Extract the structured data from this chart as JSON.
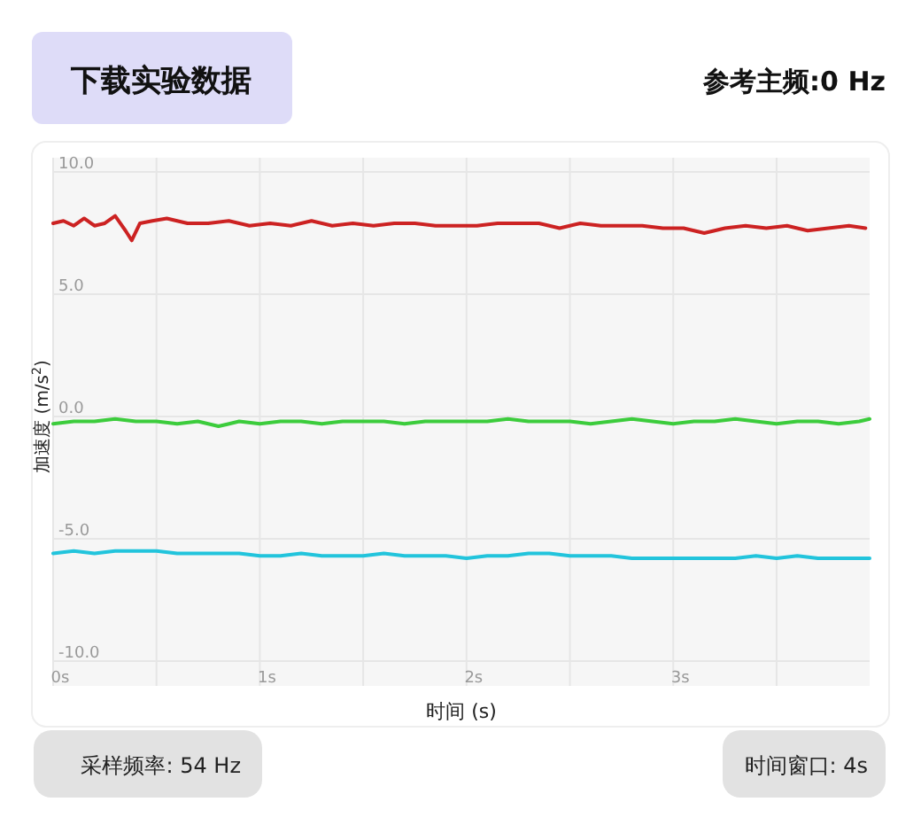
{
  "chart_data": {
    "type": "line",
    "xlabel": "时间 (s)",
    "ylabel": "加速度 (m/s$^{2}$)",
    "annotations": [
      "下载实验数据",
      "参考主频:0 Hz",
      "采样频率: 54 Hz",
      "时间窗口: 4s"
    ],
    "xlim": [
      0,
      3.95
    ],
    "ylim": [
      -10,
      10
    ],
    "xticks": [
      {
        "value": 0,
        "label": "0s"
      },
      {
        "value": 0.5,
        "label": null
      },
      {
        "value": 1,
        "label": "1s"
      },
      {
        "value": 1.5,
        "label": null
      },
      {
        "value": 2,
        "label": "2s"
      },
      {
        "value": 2.5,
        "label": null
      },
      {
        "value": 3,
        "label": "3s"
      },
      {
        "value": 3.5,
        "label": null
      }
    ],
    "yticks": [
      {
        "value": -10,
        "label": "-10.0"
      },
      {
        "value": -5,
        "label": "-5.0"
      },
      {
        "value": 0,
        "label": "0.0"
      },
      {
        "value": 5,
        "label": "5.0"
      },
      {
        "value": 10,
        "label": "10.0"
      }
    ],
    "grid": true,
    "line_style": "solid",
    "series": [
      {
        "color": "#cc2222",
        "x": [
          0,
          0.05,
          0.1,
          0.15,
          0.2,
          0.25,
          0.3,
          0.35,
          0.38,
          0.42,
          0.48,
          0.55,
          0.65,
          0.75,
          0.85,
          0.95,
          1.05,
          1.15,
          1.25,
          1.35,
          1.45,
          1.55,
          1.65,
          1.75,
          1.85,
          1.95,
          2.05,
          2.15,
          2.25,
          2.35,
          2.45,
          2.55,
          2.65,
          2.75,
          2.85,
          2.95,
          3.05,
          3.15,
          3.25,
          3.35,
          3.45,
          3.55,
          3.65,
          3.75,
          3.85,
          3.93
        ],
        "values": [
          7.9,
          8.0,
          7.8,
          8.1,
          7.8,
          7.9,
          8.2,
          7.6,
          7.2,
          7.9,
          8.0,
          8.1,
          7.9,
          7.9,
          8.0,
          7.8,
          7.9,
          7.8,
          8.0,
          7.8,
          7.9,
          7.8,
          7.9,
          7.9,
          7.8,
          7.8,
          7.8,
          7.9,
          7.9,
          7.9,
          7.7,
          7.9,
          7.8,
          7.8,
          7.8,
          7.7,
          7.7,
          7.5,
          7.7,
          7.8,
          7.7,
          7.8,
          7.6,
          7.7,
          7.8,
          7.7
        ]
      },
      {
        "color": "#3ccc3c",
        "x": [
          0,
          0.1,
          0.2,
          0.3,
          0.4,
          0.5,
          0.6,
          0.7,
          0.8,
          0.9,
          1,
          1.1,
          1.2,
          1.3,
          1.4,
          1.5,
          1.6,
          1.7,
          1.8,
          1.9,
          2,
          2.1,
          2.2,
          2.3,
          2.4,
          2.5,
          2.6,
          2.7,
          2.8,
          2.9,
          3,
          3.1,
          3.2,
          3.3,
          3.4,
          3.5,
          3.6,
          3.7,
          3.8,
          3.9,
          3.95
        ],
        "values": [
          -0.3,
          -0.2,
          -0.2,
          -0.1,
          -0.2,
          -0.2,
          -0.3,
          -0.2,
          -0.4,
          -0.2,
          -0.3,
          -0.2,
          -0.2,
          -0.3,
          -0.2,
          -0.2,
          -0.2,
          -0.3,
          -0.2,
          -0.2,
          -0.2,
          -0.2,
          -0.1,
          -0.2,
          -0.2,
          -0.2,
          -0.3,
          -0.2,
          -0.1,
          -0.2,
          -0.3,
          -0.2,
          -0.2,
          -0.1,
          -0.2,
          -0.3,
          -0.2,
          -0.2,
          -0.3,
          -0.2,
          -0.1
        ]
      },
      {
        "color": "#22c4dc",
        "x": [
          0,
          0.1,
          0.2,
          0.3,
          0.4,
          0.5,
          0.6,
          0.7,
          0.8,
          0.9,
          1,
          1.1,
          1.2,
          1.3,
          1.4,
          1.5,
          1.6,
          1.7,
          1.8,
          1.9,
          2,
          2.1,
          2.2,
          2.3,
          2.4,
          2.5,
          2.6,
          2.7,
          2.8,
          2.9,
          3,
          3.1,
          3.2,
          3.3,
          3.4,
          3.5,
          3.6,
          3.7,
          3.8,
          3.9,
          3.95
        ],
        "values": [
          -5.6,
          -5.5,
          -5.6,
          -5.5,
          -5.5,
          -5.5,
          -5.6,
          -5.6,
          -5.6,
          -5.6,
          -5.7,
          -5.7,
          -5.6,
          -5.7,
          -5.7,
          -5.7,
          -5.6,
          -5.7,
          -5.7,
          -5.7,
          -5.8,
          -5.7,
          -5.7,
          -5.6,
          -5.6,
          -5.7,
          -5.7,
          -5.7,
          -5.8,
          -5.8,
          -5.8,
          -5.8,
          -5.8,
          -5.8,
          -5.7,
          -5.8,
          -5.7,
          -5.8,
          -5.8,
          -5.8,
          -5.8
        ]
      }
    ]
  }
}
